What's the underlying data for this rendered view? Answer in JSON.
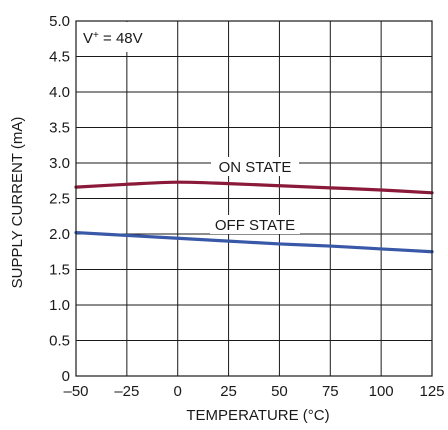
{
  "chart_data": {
    "type": "line",
    "title": "",
    "xlabel": "TEMPERATURE (°C)",
    "ylabel": "SUPPLY CURRENT (mA)",
    "xlim": [
      -50,
      125
    ],
    "ylim": [
      0,
      5.0
    ],
    "x_ticks": [
      "–50",
      "–25",
      "0",
      "25",
      "50",
      "75",
      "100",
      "125"
    ],
    "y_ticks": [
      "0",
      "0.5",
      "1.0",
      "1.5",
      "2.0",
      "2.5",
      "3.0",
      "3.5",
      "4.0",
      "4.5",
      "5.0"
    ],
    "grid": true,
    "annotation": {
      "main": "V",
      "sup": "+",
      "rest": " = 48V"
    },
    "series": [
      {
        "name": "ON STATE",
        "color": "#8b1a3a",
        "x": [
          -50,
          -25,
          0,
          25,
          50,
          75,
          100,
          125
        ],
        "y": [
          2.66,
          2.7,
          2.73,
          2.71,
          2.68,
          2.65,
          2.62,
          2.58
        ]
      },
      {
        "name": "OFF STATE",
        "color": "#3a58a8",
        "x": [
          -50,
          -25,
          0,
          25,
          50,
          75,
          100,
          125
        ],
        "y": [
          2.02,
          1.98,
          1.94,
          1.9,
          1.86,
          1.83,
          1.79,
          1.75
        ]
      }
    ]
  }
}
